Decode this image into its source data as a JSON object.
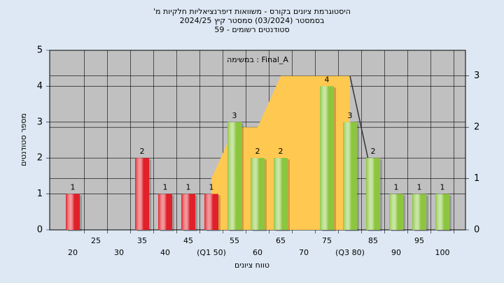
{
  "chart_data": {
    "type": "bar",
    "title": "היסטוגרמת ציונים בקורס - משוואות דיפרנציאליות חלקיות מ'",
    "subtitle": "בסמסטר (03/2024) סמסטר קיץ 2024/25",
    "subtitle2": "סטודנטים רשומים - 59",
    "annotation": "במשימה : Final_A",
    "xlabel": "טווח ציונים",
    "ylabel": "מספר סטודנטים",
    "x": [
      20,
      25,
      30,
      35,
      40,
      45,
      50,
      55,
      60,
      65,
      70,
      75,
      80,
      85,
      90,
      95,
      100
    ],
    "values": [
      1,
      0,
      0,
      2,
      1,
      1,
      1,
      3,
      2,
      2,
      0,
      4,
      3,
      2,
      1,
      1,
      1
    ],
    "value_labels": [
      "1",
      null,
      null,
      "2",
      "1",
      "1",
      "1",
      "3",
      "2",
      "2",
      null,
      "4",
      "3",
      "2",
      "1",
      "1",
      "1"
    ],
    "colors": [
      "#e0202a",
      "#e0202a",
      "#e0202a",
      "#e0202a",
      "#e0202a",
      "#e0202a",
      "#e0202a",
      "#8cc63f",
      "#8cc63f",
      "#8cc63f",
      "#8cc63f",
      "#8cc63f",
      "#8cc63f",
      "#8cc63f",
      "#8cc63f",
      "#8cc63f",
      "#8cc63f"
    ],
    "area": {
      "color": "#ffc850",
      "axis": "y2",
      "x": [
        50,
        50,
        55,
        60,
        65,
        80,
        80
      ],
      "values": [
        0,
        1,
        2,
        2,
        3,
        3,
        0
      ]
    },
    "line": {
      "color": "#333333",
      "axis": "y2",
      "x": [
        80,
        84
      ],
      "values": [
        3,
        1.35
      ]
    },
    "xlim": [
      15,
      105
    ],
    "xticks": [
      20,
      25,
      30,
      35,
      40,
      45,
      {
        "value": 50,
        "label": "(Q1 50)"
      },
      55,
      60,
      65,
      70,
      75,
      {
        "value": 80,
        "label": "(Q3 80)"
      },
      85,
      90,
      95,
      100
    ],
    "ylim": [
      0,
      5
    ],
    "yticks": [
      0,
      1,
      2,
      3,
      4,
      5
    ],
    "y2lim": [
      0,
      3.5
    ],
    "y2ticks": [
      0,
      1,
      2,
      3
    ],
    "grid": true
  }
}
